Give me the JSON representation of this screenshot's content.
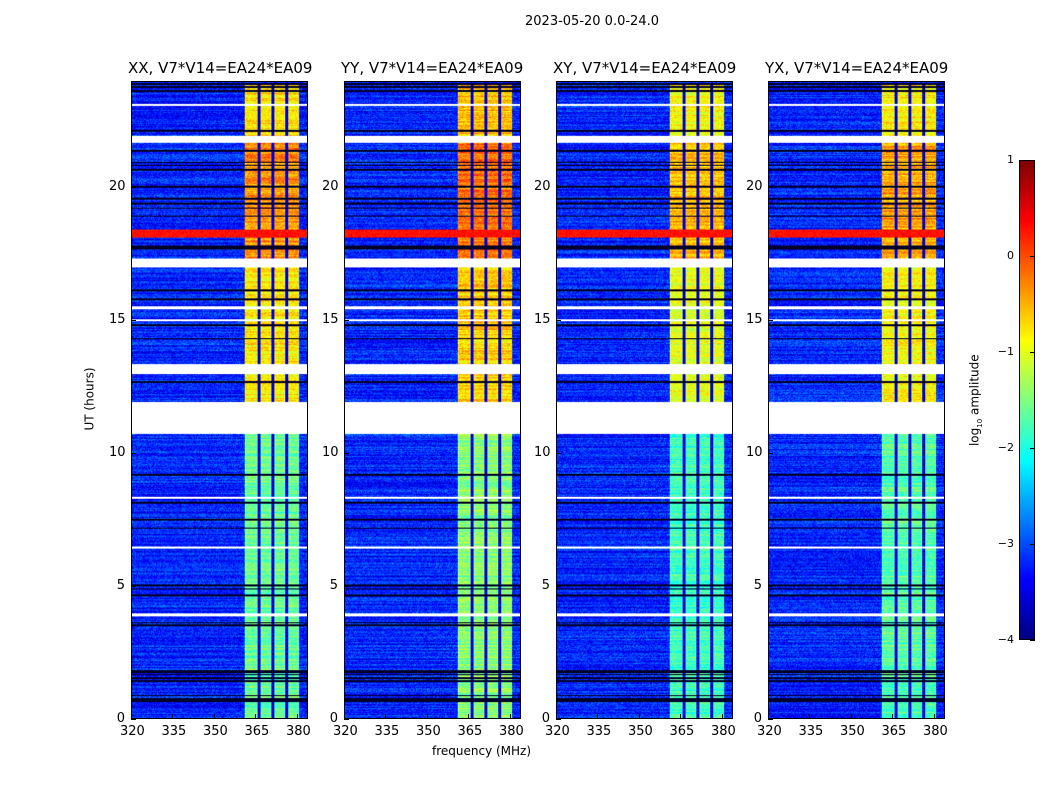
{
  "chart_data": {
    "type": "heatmap",
    "title": "2023-05-20 0.0-24.0",
    "xlabel": "frequency (MHz)",
    "ylabel": "UT (hours)",
    "xlim": [
      320,
      384
    ],
    "ylim": [
      0,
      24
    ],
    "xticks": [
      "320",
      "335",
      "350",
      "365",
      "380"
    ],
    "xtick_values": [
      320,
      335,
      350,
      365,
      380
    ],
    "yticks": [
      "0",
      "5",
      "10",
      "15",
      "20"
    ],
    "ytick_values": [
      0,
      5,
      10,
      15,
      20
    ],
    "panels": [
      {
        "title": "XX, V7*V14=EA24*EA09",
        "band_boost": 0.0
      },
      {
        "title": "YY, V7*V14=EA24*EA09",
        "band_boost": 0.15
      },
      {
        "title": "XY, V7*V14=EA24*EA09",
        "band_boost": -0.2
      },
      {
        "title": "YX, V7*V14=EA24*EA09",
        "band_boost": -0.1
      }
    ],
    "flagged_hours": [
      [
        10.73,
        11.93
      ],
      [
        12.98,
        13.39
      ],
      [
        17.03,
        17.37
      ],
      [
        21.72,
        21.98
      ],
      [
        15.0,
        15.08
      ],
      [
        15.45,
        15.55
      ],
      [
        6.4,
        6.5
      ],
      [
        3.85,
        3.95
      ],
      [
        8.3,
        8.36
      ],
      [
        23.1,
        23.2
      ]
    ],
    "rfi_band_mhz": [
      361,
      381
    ],
    "rfi_band_gaps_mhz": [
      366.2,
      371.4,
      376.5
    ],
    "background_log_amp": -3.2,
    "band_levels": [
      {
        "hours": [
          0,
          10.73
        ],
        "log_amp": -1.6
      },
      {
        "hours": [
          11.93,
          17.03
        ],
        "log_amp": -0.8
      },
      {
        "hours": [
          17.37,
          21.72
        ],
        "log_amp": -0.35
      },
      {
        "hours": [
          21.98,
          24
        ],
        "log_amp": -0.7
      }
    ],
    "broadband_streak": {
      "hours": [
        18.15,
        18.45
      ],
      "log_amp": 0.3
    },
    "colorbar": {
      "label": "log10 amplitude",
      "label_main": "log",
      "label_sub": "10",
      "label_rest": " amplitude",
      "range": [
        -4,
        1
      ],
      "ticks": [
        "1",
        "0",
        "−1",
        "−2",
        "−3",
        "−4"
      ],
      "tick_values": [
        1,
        0,
        -1,
        -2,
        -3,
        -4
      ],
      "colormap": "jet"
    }
  }
}
